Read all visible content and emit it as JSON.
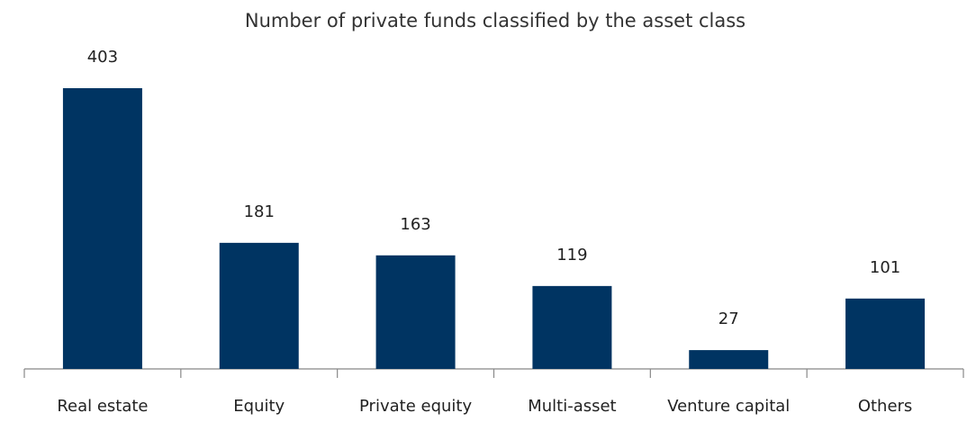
{
  "chart_data": {
    "type": "bar",
    "title": "Number of private funds classified by the asset class",
    "categories": [
      "Real estate",
      "Equity",
      "Private equity",
      "Multi-asset",
      "Venture capital",
      "Others"
    ],
    "values": [
      403,
      181,
      163,
      119,
      27,
      101
    ],
    "color": "#003462",
    "grid": false
  }
}
